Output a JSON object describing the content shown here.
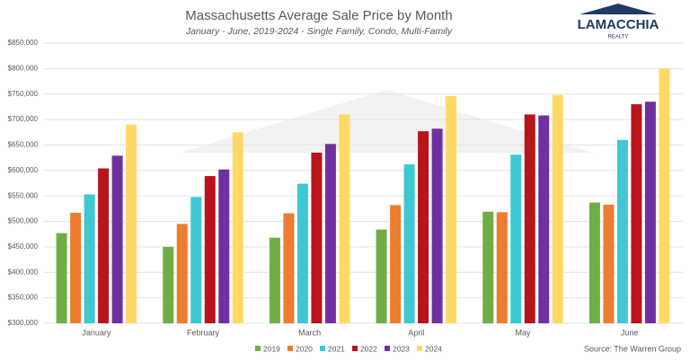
{
  "chart_data": {
    "type": "bar",
    "title": "Massachusetts Average Sale Price by Month",
    "subtitle": "January - June, 2019-2024 - Single Family, Condo, Multi-Family",
    "source": "Source: The Warren Group",
    "logo": {
      "name": "LAMACCHIA",
      "tagline": "REALTY"
    },
    "categories": [
      "January",
      "February",
      "March",
      "April",
      "May",
      "June"
    ],
    "series": [
      {
        "name": "2019",
        "color": "#70ad47",
        "values": [
          477000,
          450000,
          468000,
          484000,
          519000,
          537000
        ]
      },
      {
        "name": "2020",
        "color": "#ed7d31",
        "values": [
          517000,
          495000,
          516000,
          532000,
          518000,
          533000
        ]
      },
      {
        "name": "2021",
        "color": "#3ec8d4",
        "values": [
          553000,
          548000,
          574000,
          612000,
          631000,
          660000
        ]
      },
      {
        "name": "2022",
        "color": "#b8141c",
        "values": [
          604000,
          589000,
          635000,
          677000,
          710000,
          730000
        ]
      },
      {
        "name": "2023",
        "color": "#7030a0",
        "values": [
          629000,
          602000,
          652000,
          682000,
          708000,
          735000
        ]
      },
      {
        "name": "2024",
        "color": "#ffd966",
        "values": [
          690000,
          675000,
          710000,
          746000,
          748000,
          800000
        ]
      }
    ],
    "ylim": [
      300000,
      850000
    ],
    "yticks": [
      {
        "value": 300000,
        "label": "$300,000"
      },
      {
        "value": 350000,
        "label": "$350,000"
      },
      {
        "value": 400000,
        "label": "$400,000"
      },
      {
        "value": 450000,
        "label": "$450,000"
      },
      {
        "value": 500000,
        "label": "$500,000"
      },
      {
        "value": 550000,
        "label": "$550,000"
      },
      {
        "value": 600000,
        "label": "$600,000"
      },
      {
        "value": 650000,
        "label": "$650,000"
      },
      {
        "value": 700000,
        "label": "$700,000"
      },
      {
        "value": 750000,
        "label": "$750,000"
      },
      {
        "value": 800000,
        "label": "$800,000"
      },
      {
        "value": 850000,
        "label": "$850,000"
      }
    ],
    "grid": true,
    "legend": "bottom"
  }
}
